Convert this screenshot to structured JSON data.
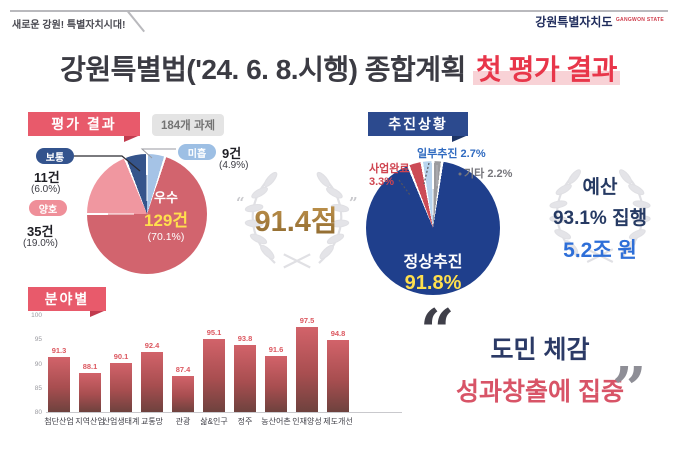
{
  "header": {
    "slogan": "새로운 강원! 특별자치시대!",
    "logo": {
      "name": "강원특별자치도",
      "sub": "GANGWON STATE"
    },
    "title_prefix": "강원특별법('24. 6. 8.시행) 종합계획 ",
    "title_highlight": "첫 평가 결과"
  },
  "evaluation": {
    "section_label": "평가 결과",
    "task_badge": "184개 과제",
    "score": "91.4점"
  },
  "progress": {
    "section_label": "추진상황",
    "budget": {
      "line1": "예산",
      "line2": "93.1% 집행",
      "line3": "5.2조 원"
    }
  },
  "sector": {
    "section_label": "분야별"
  },
  "quote": {
    "line1": "도민 체감",
    "line2": "성과창출에 집중"
  },
  "icons": {
    "open_quote": "“",
    "close_quote": "”"
  },
  "colors": {
    "accent_red": "#e85a6b",
    "accent_navy": "#2c4a8e",
    "highlight_red": "#e8364a",
    "gold": "#a07c35",
    "value_yellow": "#ffdf4d",
    "budget_blue": "#2e6fd8"
  },
  "chart_data": [
    {
      "id": "evaluation-pie",
      "type": "pie",
      "title": "평가 결과",
      "note": "184개 과제",
      "start_angle_deg": 0,
      "direction": "clockwise-from-top",
      "slices": [
        {
          "label": "미흡",
          "count": "9건",
          "pct": 4.9,
          "pct_label": "(4.9%)",
          "color": "#a5c3e6"
        },
        {
          "label": "우수",
          "count": "129건",
          "pct": 70.1,
          "pct_label": "(70.1%)",
          "color": "#d2646e"
        },
        {
          "label": "양호",
          "count": "35건",
          "pct": 19.0,
          "pct_label": "(19.0%)",
          "color": "#f097a0"
        },
        {
          "label": "보통",
          "count": "11건",
          "pct": 6.0,
          "pct_label": "(6.0%)",
          "color": "#35548b"
        }
      ],
      "overall_score": "91.4점"
    },
    {
      "id": "progress-pie",
      "type": "pie",
      "title": "추진상황",
      "direction": "clockwise-from-top",
      "slices": [
        {
          "label": "기타",
          "pct": 2.2,
          "pct_label": "2.2%",
          "color": "#9b9b9f"
        },
        {
          "label": "정상추진",
          "pct": 91.8,
          "pct_label": "91.8%",
          "color": "#1f3f8c"
        },
        {
          "label": "사업완료",
          "pct": 3.3,
          "pct_label": "3.3%",
          "color": "#cc4b56"
        },
        {
          "label": "일부추진",
          "pct": 2.7,
          "pct_label": "2.7%",
          "color": "#b9d4ee"
        }
      ]
    },
    {
      "id": "sector-bar",
      "type": "bar",
      "title": "분야별",
      "categories": [
        "첨단산업",
        "지역산업",
        "산업생태계",
        "교통망",
        "관광",
        "삶&인구",
        "정주",
        "농산어촌",
        "인재양성",
        "제도개선"
      ],
      "values": [
        91.3,
        88.1,
        90.1,
        92.4,
        87.4,
        95.1,
        93.8,
        91.6,
        97.5,
        94.8
      ],
      "ylabel": "",
      "xlabel": "",
      "ylim": [
        80,
        100
      ],
      "yticks": [
        100,
        95,
        90,
        85,
        80
      ],
      "grid": false,
      "bar_color": "#b85456"
    }
  ]
}
